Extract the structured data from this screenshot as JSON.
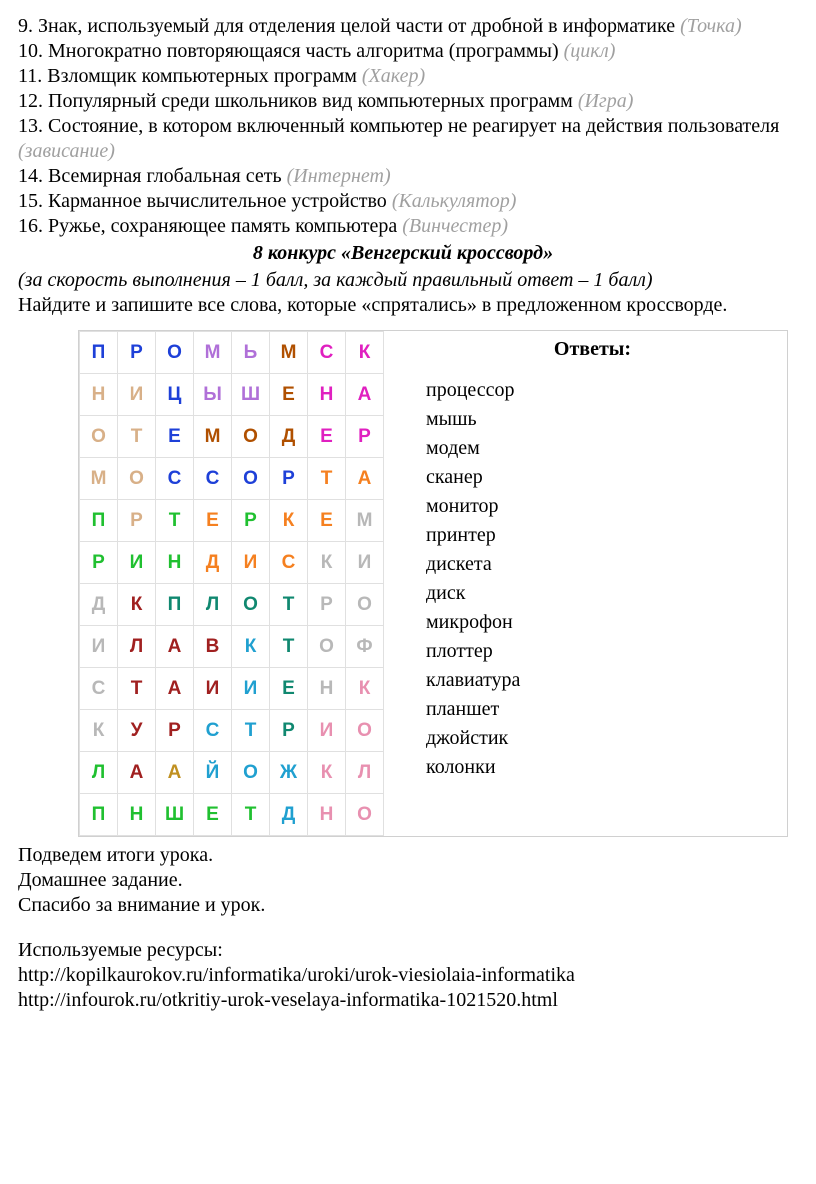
{
  "questions": [
    {
      "num": "9.",
      "text": "Знак, используемый для отделения целой части от дробной в информатике ",
      "answer": "(Точка)"
    },
    {
      "num": "10.",
      "text": "Многократно повторяющаяся часть алгоритма (программы) ",
      "answer": "(цикл)"
    },
    {
      "num": "11.",
      "text": "Взломщик компьютерных программ ",
      "answer": "(Хакер)"
    },
    {
      "num": "12.",
      "text": "Популярный среди школьников вид компьютерных программ ",
      "answer": "(Игра)"
    },
    {
      "num": "13.",
      "text": "Состояние, в котором включенный компьютер не реагирует на действия пользователя ",
      "answer": "(зависание)"
    },
    {
      "num": "14.",
      "text": "Всемирная глобальная сеть ",
      "answer": "(Интернет)"
    },
    {
      "num": "15.",
      "text": "Карманное вычислительное устройство ",
      "answer": "(Калькулятор)"
    },
    {
      "num": "16.",
      "text": "Ружье, сохраняющее память компьютера ",
      "answer": "(Винчестер)"
    }
  ],
  "contest_title": "8 конкурс «Венгерский кроссворд»",
  "scoring": "(за скорость выполнения – 1 балл, за каждый правильный ответ – 1  балл)",
  "instruction": "Найдите и запишите все слова, которые «спрятались» в предложенном кроссворде.",
  "colors": {
    "blue": "#1e40d8",
    "orange": "#f58020",
    "violet": "#b070d8",
    "brown": "#b05000",
    "magenta": "#e020c0",
    "tan": "#d8b088",
    "gray": "#b8b8b8",
    "cyan": "#20a0d0",
    "green": "#20c030",
    "red": "#e02020",
    "darkred": "#a02020",
    "gold": "#c09020",
    "pink": "#e890b0",
    "teal": "#108870",
    "black": "#000000"
  },
  "grid": [
    [
      [
        "П",
        "blue"
      ],
      [
        "Р",
        "blue"
      ],
      [
        "О",
        "blue"
      ],
      [
        "М",
        "violet"
      ],
      [
        "Ь",
        "violet"
      ],
      [
        "М",
        "brown"
      ],
      [
        "С",
        "magenta"
      ],
      [
        "К",
        "magenta"
      ]
    ],
    [
      [
        "Н",
        "tan"
      ],
      [
        "И",
        "tan"
      ],
      [
        "Ц",
        "blue"
      ],
      [
        "Ы",
        "violet"
      ],
      [
        "Ш",
        "violet"
      ],
      [
        "Е",
        "brown"
      ],
      [
        "Н",
        "magenta"
      ],
      [
        "А",
        "magenta"
      ]
    ],
    [
      [
        "О",
        "tan"
      ],
      [
        "Т",
        "tan"
      ],
      [
        "Е",
        "blue"
      ],
      [
        "М",
        "brown"
      ],
      [
        "О",
        "brown"
      ],
      [
        "Д",
        "brown"
      ],
      [
        "Е",
        "magenta"
      ],
      [
        "Р",
        "magenta"
      ]
    ],
    [
      [
        "М",
        "tan"
      ],
      [
        "О",
        "tan"
      ],
      [
        "С",
        "blue"
      ],
      [
        "С",
        "blue"
      ],
      [
        "О",
        "blue"
      ],
      [
        "Р",
        "blue"
      ],
      [
        "Т",
        "orange"
      ],
      [
        "А",
        "orange"
      ]
    ],
    [
      [
        "П",
        "green"
      ],
      [
        "Р",
        "tan"
      ],
      [
        "Т",
        "green"
      ],
      [
        "Е",
        "orange"
      ],
      [
        "Р",
        "green"
      ],
      [
        "К",
        "orange"
      ],
      [
        "Е",
        "orange"
      ],
      [
        "М",
        "gray"
      ]
    ],
    [
      [
        "Р",
        "green"
      ],
      [
        "И",
        "green"
      ],
      [
        "Н",
        "green"
      ],
      [
        "Д",
        "orange"
      ],
      [
        "И",
        "orange"
      ],
      [
        "С",
        "orange"
      ],
      [
        "К",
        "gray"
      ],
      [
        "И",
        "gray"
      ]
    ],
    [
      [
        "Д",
        "gray"
      ],
      [
        "К",
        "darkred"
      ],
      [
        "П",
        "teal"
      ],
      [
        "Л",
        "teal"
      ],
      [
        "О",
        "teal"
      ],
      [
        "Т",
        "teal"
      ],
      [
        "Р",
        "gray"
      ],
      [
        "О",
        "gray"
      ]
    ],
    [
      [
        "И",
        "gray"
      ],
      [
        "Л",
        "darkred"
      ],
      [
        "А",
        "darkred"
      ],
      [
        "В",
        "darkred"
      ],
      [
        "К",
        "cyan"
      ],
      [
        "Т",
        "teal"
      ],
      [
        "О",
        "gray"
      ],
      [
        "Ф",
        "gray"
      ]
    ],
    [
      [
        "С",
        "gray"
      ],
      [
        "Т",
        "darkred"
      ],
      [
        "А",
        "darkred"
      ],
      [
        "И",
        "darkred"
      ],
      [
        "И",
        "cyan"
      ],
      [
        "Е",
        "teal"
      ],
      [
        "Н",
        "gray"
      ],
      [
        "К",
        "pink"
      ]
    ],
    [
      [
        "К",
        "gray"
      ],
      [
        "У",
        "darkred"
      ],
      [
        "Р",
        "darkred"
      ],
      [
        "С",
        "cyan"
      ],
      [
        "Т",
        "cyan"
      ],
      [
        "Р",
        "teal"
      ],
      [
        "И",
        "pink"
      ],
      [
        "О",
        "pink"
      ]
    ],
    [
      [
        "Л",
        "green"
      ],
      [
        "А",
        "darkred"
      ],
      [
        "А",
        "gold"
      ],
      [
        "Й",
        "cyan"
      ],
      [
        "О",
        "cyan"
      ],
      [
        "Ж",
        "cyan"
      ],
      [
        "К",
        "pink"
      ],
      [
        "Л",
        "pink"
      ]
    ],
    [
      [
        "П",
        "green"
      ],
      [
        "Н",
        "green"
      ],
      [
        "Ш",
        "green"
      ],
      [
        "Е",
        "green"
      ],
      [
        "Т",
        "green"
      ],
      [
        "Д",
        "cyan"
      ],
      [
        "Н",
        "pink"
      ],
      [
        "О",
        "pink"
      ]
    ]
  ],
  "answers_title": "Ответы:",
  "answers": [
    "процессор",
    "мышь",
    "модем",
    "сканер",
    "монитор",
    "принтер",
    "дискета",
    "диск",
    "микрофон",
    "плоттер",
    "клавиатура",
    "планшет",
    "джойстик",
    "колонки"
  ],
  "footer": [
    "Подведем итоги урока.",
    "Домашнее задание.",
    "Спасибо за внимание и урок."
  ],
  "resources_title": "Используемые ресурсы:",
  "resources": [
    "http://kopilkaurokov.ru/informatika/uroki/urok-viesiolaia-informatika",
    "http://infourok.ru/otkritiy-urok-veselaya-informatika-1021520.html"
  ]
}
